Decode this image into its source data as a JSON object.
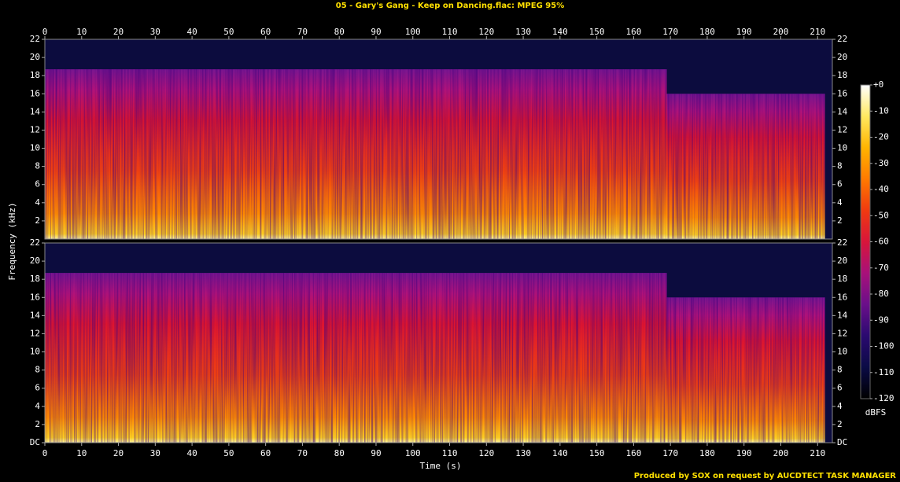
{
  "chart_data": {
    "type": "spectrogram",
    "title": "05 - Gary's Gang - Keep on Dancing.flac: MPEG 95%",
    "xlabel": "Time (s)",
    "ylabel": "Frequency (kHz)",
    "xlim": [
      0,
      214
    ],
    "xticks": [
      0,
      10,
      20,
      30,
      40,
      50,
      60,
      70,
      80,
      90,
      100,
      110,
      120,
      130,
      140,
      150,
      160,
      170,
      180,
      190,
      200,
      210
    ],
    "channels": [
      {
        "ylim": [
          0,
          22
        ],
        "yticks": [
          2,
          4,
          6,
          8,
          10,
          12,
          14,
          16,
          18,
          20,
          22
        ],
        "bands": [
          {
            "xlim": [
              0,
              169
            ],
            "top": 18.7
          },
          {
            "xlim": [
              169,
              212
            ],
            "top": 16
          }
        ]
      },
      {
        "ylim": [
          0,
          22
        ],
        "yticks": [
          {
            "value": 0,
            "label": "DC"
          },
          2,
          4,
          6,
          8,
          10,
          12,
          14,
          16,
          18,
          20,
          22
        ],
        "bands": [
          {
            "xlim": [
              0,
              169
            ],
            "top": 18.7
          },
          {
            "xlim": [
              169,
              212
            ],
            "top": 16
          }
        ]
      }
    ],
    "colorbar": {
      "label": "dBFS",
      "lim": [
        -120,
        0
      ],
      "ticks": [
        {
          "value": 0,
          "label": "+0"
        },
        -10,
        -20,
        -30,
        -40,
        -50,
        -60,
        -70,
        -80,
        -90,
        -100,
        -110,
        -120
      ],
      "colors": [
        "#000000",
        "#0b0b45",
        "#2a0a70",
        "#6a0f8a",
        "#a8107a",
        "#d8153a",
        "#f03a10",
        "#ff7a00",
        "#ffb400",
        "#ffe860",
        "#ffffff"
      ]
    },
    "footer": "Produced by SOX on request by AUCDTECT TASK MANAGER"
  }
}
